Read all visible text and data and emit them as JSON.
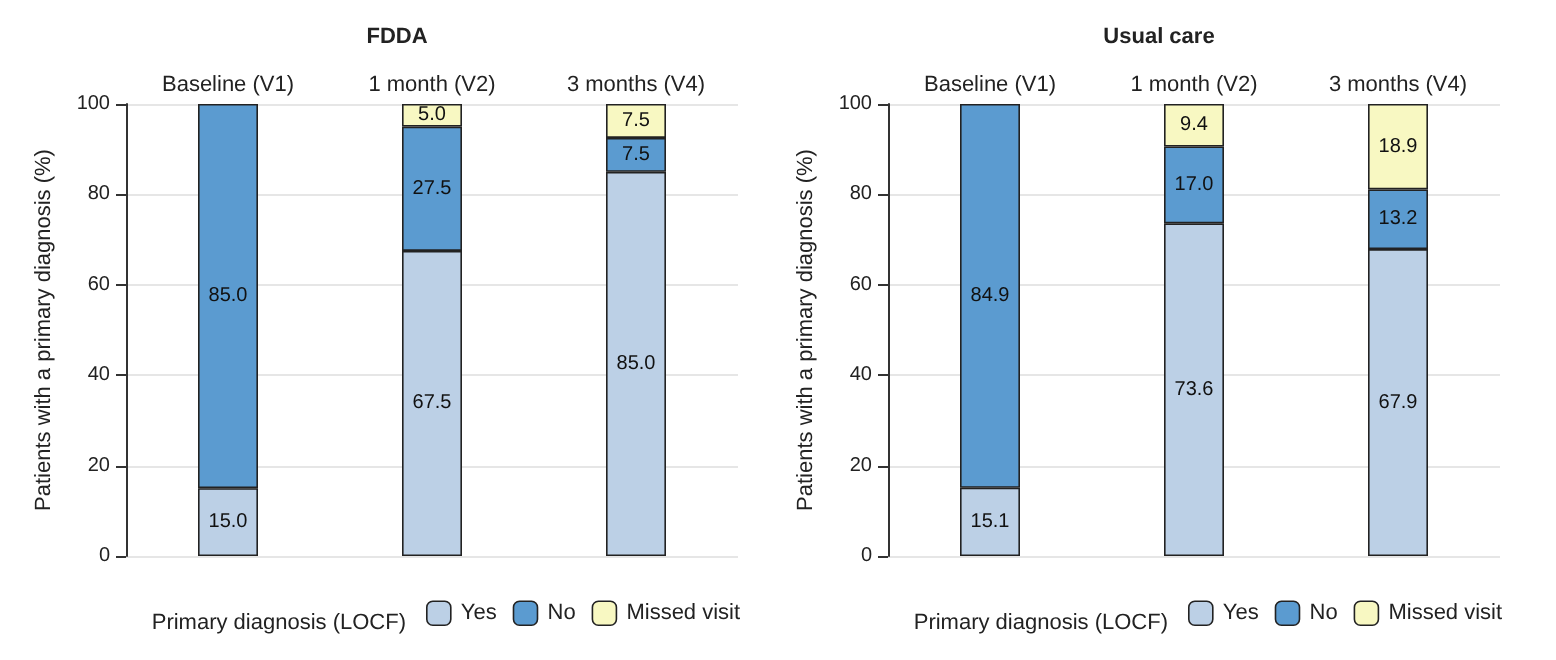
{
  "chart_data": [
    {
      "type": "bar",
      "title": "FDDA",
      "ylabel": "Patients with a primary diagnosis (%)",
      "legend_title": "Primary diagnosis (LOCF)",
      "categories": [
        "Baseline (V1)",
        "1 month (V2)",
        "3 months (V4)"
      ],
      "stacked": true,
      "ylim": [
        0,
        100
      ],
      "yticks": [
        0,
        20,
        40,
        60,
        80,
        100
      ],
      "grid": "y",
      "legend": "bottom",
      "series": [
        {
          "name": "Yes",
          "color": "#bcd0e6",
          "values": [
            15.0,
            67.5,
            85.0
          ],
          "value_labels": [
            "15.0",
            "67.5",
            "85.0"
          ]
        },
        {
          "name": "No",
          "color": "#5b9bd0",
          "values": [
            85.0,
            27.5,
            7.5
          ],
          "value_labels": [
            "85.0",
            "27.5",
            "7.5"
          ]
        },
        {
          "name": "Missed visit",
          "color": "#f8f8c2",
          "values": [
            null,
            5.0,
            7.5
          ],
          "value_labels": [
            null,
            "5.0",
            "7.5"
          ]
        }
      ]
    },
    {
      "type": "bar",
      "title": "Usual care",
      "ylabel": "Patients with a primary diagnosis (%)",
      "legend_title": "Primary diagnosis (LOCF)",
      "categories": [
        "Baseline (V1)",
        "1 month (V2)",
        "3 months (V4)"
      ],
      "stacked": true,
      "ylim": [
        0,
        100
      ],
      "yticks": [
        0,
        20,
        40,
        60,
        80,
        100
      ],
      "grid": "y",
      "legend": "bottom",
      "series": [
        {
          "name": "Yes",
          "color": "#bcd0e6",
          "values": [
            15.1,
            73.6,
            67.9
          ],
          "value_labels": [
            "15.1",
            "73.6",
            "67.9"
          ]
        },
        {
          "name": "No",
          "color": "#5b9bd0",
          "values": [
            84.9,
            17.0,
            13.2
          ],
          "value_labels": [
            "84.9",
            "17.0",
            "13.2"
          ]
        },
        {
          "name": "Missed visit",
          "color": "#f8f8c2",
          "values": [
            null,
            9.4,
            18.9
          ],
          "value_labels": [
            null,
            "9.4",
            "18.9"
          ]
        }
      ]
    }
  ]
}
